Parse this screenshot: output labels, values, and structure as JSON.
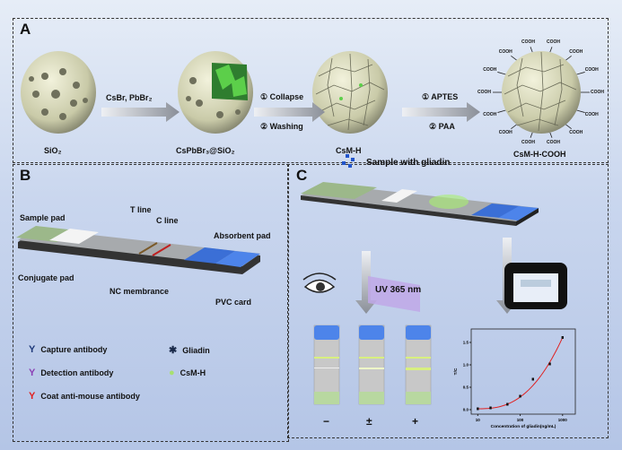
{
  "panelA": {
    "label": "A",
    "steps": [
      {
        "name": "SiO₂"
      },
      {
        "name": "CsPbBr₃@SiO₂"
      },
      {
        "name": "CsM-H"
      },
      {
        "name": "CsM-H-COOH"
      }
    ],
    "arrow1": "CsBr, PbBr₂",
    "arrow2_top": "① Collapse",
    "arrow2_bottom": "② Washing",
    "arrow3_top": "① APTES",
    "arrow3_bottom": "② PAA",
    "group": "COOH"
  },
  "panelB": {
    "label": "B",
    "sample_pad": "Sample pad",
    "t_line": "T line",
    "c_line": "C line",
    "absorbent_pad": "Absorbent pad",
    "conjugate_pad": "Conjugate pad",
    "nc_membrane": "NC membrance",
    "pvc_card": "PVC card",
    "legend": [
      {
        "label": "Capture antibody",
        "color": "#1f3a7a",
        "icon": "y-antibody-icon"
      },
      {
        "label": "Detection antibody",
        "color": "#8b3fb5",
        "icon": "y-antibody-icon"
      },
      {
        "label": "Coat anti-mouse antibody",
        "color": "#e02020",
        "icon": "y-antibody-icon"
      },
      {
        "label": "Gliadin",
        "color": "#1a2a4a",
        "icon": "asterisk-icon"
      },
      {
        "label": "CsM-H",
        "color": "#a8e070",
        "icon": "dot-icon"
      }
    ]
  },
  "panelC": {
    "label": "C",
    "sample": "Sample with gliadin",
    "uv": "UV 365 nm",
    "results": [
      "−",
      "±",
      "+"
    ]
  },
  "chart_data": {
    "type": "scatter",
    "xlabel": "Concentration of gliadin(ng/mL)",
    "ylabel": "T/C",
    "x_scale": "log",
    "xlim": [
      7,
      2000
    ],
    "ylim": [
      -0.1,
      1.8
    ],
    "xticks": [
      "10",
      "100",
      "1000"
    ],
    "yticks": [
      "0.0",
      "0.5",
      "1.0",
      "1.5"
    ],
    "x": [
      10,
      20,
      50,
      100,
      200,
      500,
      1000
    ],
    "y": [
      0.02,
      0.04,
      0.12,
      0.3,
      0.68,
      1.02,
      1.61
    ],
    "fit_color": "#e02020",
    "grid": false
  }
}
